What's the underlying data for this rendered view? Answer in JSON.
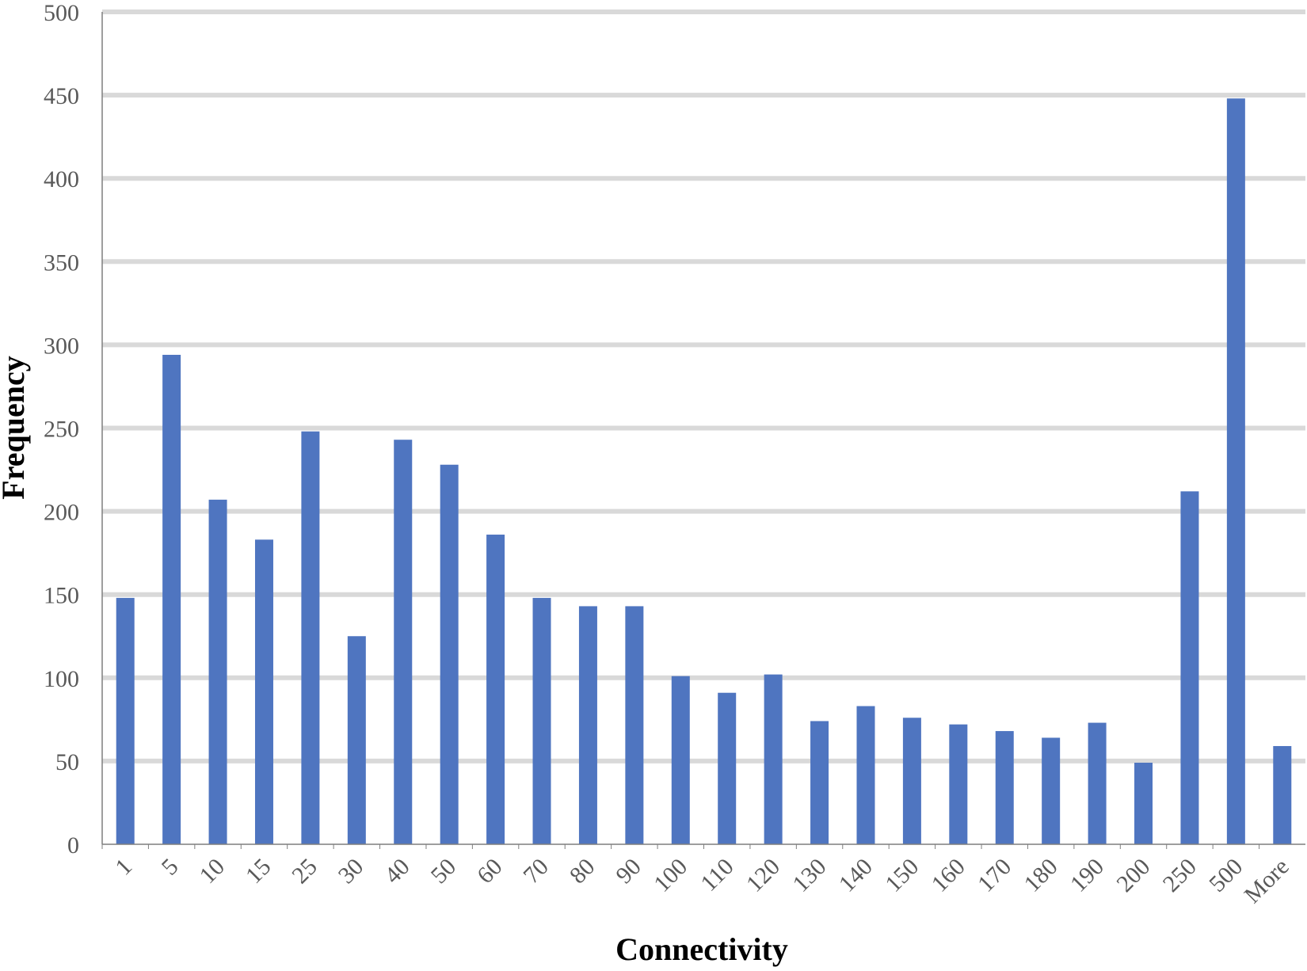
{
  "chart_data": {
    "type": "bar",
    "title": "",
    "xlabel": "Connectivity",
    "ylabel": "Frequency",
    "ylim": [
      0,
      500
    ],
    "yticks": [
      0,
      50,
      100,
      150,
      200,
      250,
      300,
      350,
      400,
      450,
      500
    ],
    "grid": true,
    "legend": "none",
    "categories": [
      "1",
      "5",
      "10",
      "15",
      "25",
      "30",
      "40",
      "50",
      "60",
      "70",
      "80",
      "90",
      "100",
      "110",
      "120",
      "130",
      "140",
      "150",
      "160",
      "170",
      "180",
      "190",
      "200",
      "250",
      "500",
      "More"
    ],
    "values": [
      148,
      294,
      207,
      183,
      248,
      125,
      243,
      228,
      186,
      148,
      143,
      143,
      101,
      91,
      102,
      74,
      83,
      76,
      72,
      68,
      64,
      73,
      49,
      212,
      448,
      59
    ],
    "colors": {
      "bar": "#4F75C0",
      "grid": "#D9D9D9",
      "axis": "#7F7F7F",
      "tick_text": "#595959"
    }
  }
}
